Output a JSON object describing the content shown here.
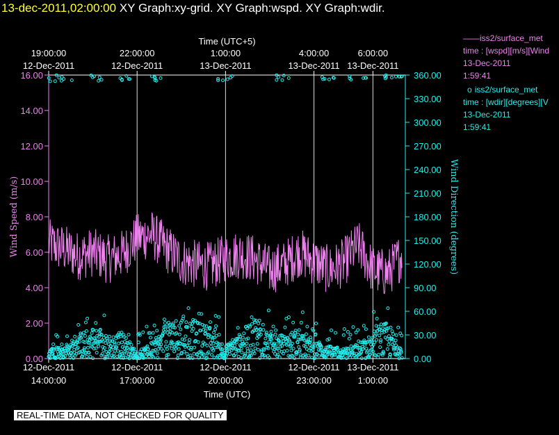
{
  "header": {
    "timestamp": "13-dec-2011,02:00:00",
    "titles": "XY Graph:xy-grid.  XY Graph:wspd.  XY Graph:wdir."
  },
  "notice": "REAL-TIME DATA, NOT CHECKED FOR QUALITY",
  "legend": [
    {
      "marker": "——",
      "name": "iss2/surface_met",
      "detail": "time : [wspd][m/s][Wind",
      "date": "13-Dec-2011",
      "time": "1:59:41",
      "color": "#ee82ee"
    },
    {
      "marker": "o",
      "name": "iss2/surface_met",
      "detail": "time : [wdir][degrees][V",
      "date": "13-Dec-2011",
      "time": "1:59:41",
      "color": "#22eeee"
    }
  ],
  "chart_data": {
    "type": "line",
    "title": "",
    "xlabel_bottom": "Time (UTC)",
    "xlabel_top": "Time (UTC+5)",
    "ylabel_left": "Wind Speed (m/s)",
    "ylabel_right": "Wind Direction (degrees)",
    "x_range_utc_hours": [
      14.0,
      26.1
    ],
    "ylim_left": [
      0,
      16
    ],
    "ylim_right": [
      0,
      360
    ],
    "yticks_left": [
      "0.00",
      "2.00",
      "4.00",
      "6.00",
      "8.00",
      "10.00",
      "12.00",
      "14.00",
      "16.00"
    ],
    "yticks_right": [
      "0.00",
      "30.00",
      "60.00",
      "90.00",
      "120.00",
      "150.00",
      "180.00",
      "210.00",
      "240.00",
      "270.00",
      "300.00",
      "330.00",
      "360.00"
    ],
    "xticks_bottom": [
      {
        "h": 14,
        "date": "12-Dec-2011",
        "time": "14:00:00"
      },
      {
        "h": 17,
        "date": "12-Dec-2011",
        "time": "17:00:00"
      },
      {
        "h": 20,
        "date": "12-Dec-2011",
        "time": "20:00:00"
      },
      {
        "h": 23,
        "date": "12-Dec-2011",
        "time": "23:00:00"
      },
      {
        "h": 25,
        "date": "13-Dec-2011",
        "time": "1:00:00"
      }
    ],
    "xticks_top": [
      {
        "h": 14,
        "time": "19:00:00",
        "date": "12-Dec-2011"
      },
      {
        "h": 17,
        "time": "22:00:00",
        "date": "12-Dec-2011"
      },
      {
        "h": 20,
        "time": "1:00:00",
        "date": "13-Dec-2011"
      },
      {
        "h": 23,
        "time": "4:00:00",
        "date": "13-Dec-2011"
      },
      {
        "h": 25,
        "time": "6:00:00",
        "date": "13-Dec-2011"
      }
    ],
    "grid": true,
    "series": [
      {
        "name": "iss2/surface_met wspd",
        "axis": "left",
        "style": "line",
        "color": "#ee82ee",
        "x": [
          14.0,
          14.5,
          15.0,
          15.5,
          16.0,
          16.5,
          17.0,
          17.5,
          18.0,
          18.5,
          19.0,
          19.5,
          20.0,
          20.5,
          21.0,
          21.5,
          22.0,
          22.5,
          23.0,
          23.5,
          24.0,
          24.5,
          25.0,
          25.5,
          26.0
        ],
        "y": [
          6.5,
          6.2,
          5.8,
          6.0,
          5.6,
          5.9,
          6.8,
          7.0,
          6.2,
          5.5,
          5.3,
          5.2,
          5.7,
          5.9,
          5.6,
          5.0,
          5.3,
          6.0,
          5.5,
          5.0,
          5.4,
          6.4,
          5.0,
          4.8,
          5.9
        ]
      },
      {
        "name": "iss2/surface_met wdir",
        "axis": "right",
        "style": "points",
        "color": "#22eeee",
        "x": [
          14.0,
          14.5,
          15.0,
          15.5,
          16.0,
          16.5,
          17.0,
          17.5,
          18.0,
          18.5,
          19.0,
          19.5,
          20.0,
          20.5,
          21.0,
          21.5,
          22.0,
          22.5,
          23.0,
          23.5,
          24.0,
          24.5,
          25.0,
          25.5,
          26.0
        ],
        "y": [
          15,
          8,
          20,
          25,
          18,
          22,
          5,
          12,
          28,
          35,
          30,
          25,
          10,
          20,
          35,
          22,
          18,
          25,
          15,
          10,
          8,
          12,
          20,
          30,
          8
        ],
        "near_360_x": [
          14.0,
          14.5,
          15.5,
          16.5,
          17.5,
          20.0,
          22.0,
          23.5,
          24.5,
          25.5,
          26.0
        ]
      }
    ]
  }
}
